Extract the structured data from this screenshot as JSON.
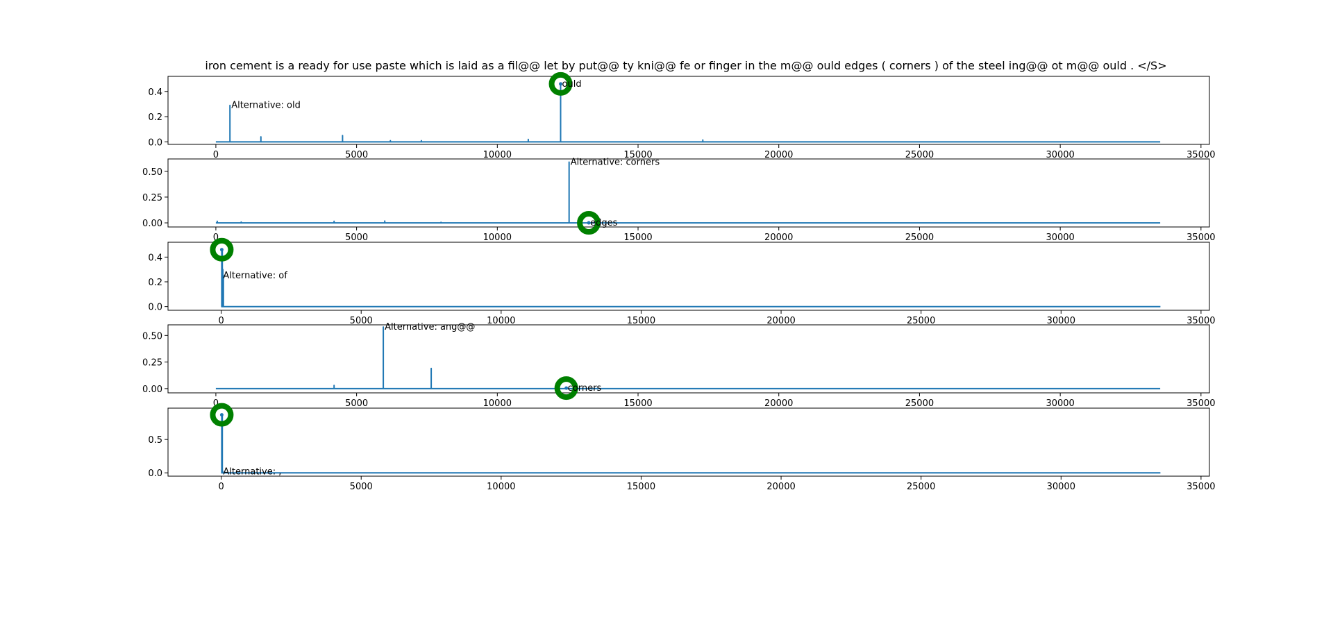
{
  "chart_data": {
    "title": "iron cement is a ready for use paste which is laid as a fil@@ let by put@@ ty kni@@ fe or finger in the m@@ ould edges ( corners ) of the steel ing@@ ot m@@ ould . </S>",
    "colors": {
      "line": "#1f77b4",
      "marker": "#008000"
    },
    "subplots": [
      {
        "type": "line",
        "xlim": [
          -1700,
          35300
        ],
        "ylim": [
          -0.02,
          0.52
        ],
        "xticks": [
          0,
          5000,
          10000,
          15000,
          20000,
          25000,
          30000,
          35000
        ],
        "yticks": [
          0.0,
          0.2,
          0.4
        ],
        "ytick_labels": [
          "0.0",
          "0.2",
          "0.4"
        ],
        "x_extent": [
          0,
          33550
        ],
        "spikes": [
          [
            500,
            0.29
          ],
          [
            1600,
            0.04
          ],
          [
            4500,
            0.05
          ],
          [
            6200,
            0.01
          ],
          [
            7300,
            0.01
          ],
          [
            11100,
            0.02
          ],
          [
            12250,
            0.46
          ],
          [
            17300,
            0.015
          ]
        ],
        "marker": {
          "x": 12250,
          "y": 0.46
        },
        "annotations": [
          {
            "label": "Alternative: old",
            "x": 500,
            "y": 0.29
          },
          {
            "label": "ould",
            "x": 12250,
            "y": 0.46
          }
        ]
      },
      {
        "type": "line",
        "xlim": [
          -1700,
          35300
        ],
        "ylim": [
          -0.04,
          0.62
        ],
        "xticks": [
          0,
          5000,
          10000,
          15000,
          20000,
          25000,
          30000,
          35000
        ],
        "yticks": [
          0.0,
          0.25,
          0.5
        ],
        "ytick_labels": [
          "0.00",
          "0.25",
          "0.50"
        ],
        "x_extent": [
          0,
          33550
        ],
        "spikes": [
          [
            50,
            0.015
          ],
          [
            900,
            0.008
          ],
          [
            4200,
            0.015
          ],
          [
            6000,
            0.018
          ],
          [
            8000,
            0.005
          ],
          [
            12550,
            0.59
          ]
        ],
        "marker": {
          "x": 13250,
          "y": 0.0
        },
        "annotations": [
          {
            "label": "Alternative: corners",
            "x": 12550,
            "y": 0.59
          },
          {
            "label": "edges",
            "x": 13250,
            "y": 0.0
          }
        ]
      },
      {
        "type": "line",
        "xlim": [
          -1900,
          35300
        ],
        "ylim": [
          -0.03,
          0.52
        ],
        "xticks": [
          0,
          5000,
          10000,
          15000,
          20000,
          25000,
          30000,
          35000
        ],
        "yticks": [
          0.0,
          0.2,
          0.4
        ],
        "ytick_labels": [
          "0.0",
          "0.2",
          "0.4"
        ],
        "x_extent": [
          0,
          33550
        ],
        "spikes": [
          [
            20,
            0.46
          ],
          [
            40,
            0.46
          ],
          [
            60,
            0.3
          ],
          [
            80,
            0.25
          ]
        ],
        "marker": {
          "x": 20,
          "y": 0.46
        },
        "annotations": [
          {
            "label": "Alternative: of",
            "x": 20,
            "y": 0.25
          }
        ]
      },
      {
        "type": "line",
        "xlim": [
          -1700,
          35300
        ],
        "ylim": [
          -0.04,
          0.6
        ],
        "xticks": [
          0,
          5000,
          10000,
          15000,
          20000,
          25000,
          30000,
          35000
        ],
        "yticks": [
          0.0,
          0.25,
          0.5
        ],
        "ytick_labels": [
          "0.00",
          "0.25",
          "0.50"
        ],
        "x_extent": [
          0,
          33550
        ],
        "spikes": [
          [
            4200,
            0.03
          ],
          [
            5950,
            0.58
          ],
          [
            7650,
            0.19
          ],
          [
            12450,
            0.005
          ]
        ],
        "marker": {
          "x": 12450,
          "y": 0.005
        },
        "annotations": [
          {
            "label": "Alternative: ang@@",
            "x": 5950,
            "y": 0.58
          },
          {
            "label": "corners",
            "x": 12450,
            "y": 0.005
          }
        ]
      },
      {
        "type": "line",
        "xlim": [
          -1900,
          35300
        ],
        "ylim": [
          -0.05,
          0.97
        ],
        "xticks": [
          0,
          5000,
          10000,
          15000,
          20000,
          25000,
          30000,
          35000
        ],
        "yticks": [
          0.0,
          0.5
        ],
        "ytick_labels": [
          "0.0",
          "0.5"
        ],
        "x_extent": [
          0,
          33550
        ],
        "spikes": [
          [
            20,
            0.87
          ],
          [
            40,
            0.87
          ],
          [
            60,
            0.02
          ]
        ],
        "marker": {
          "x": 20,
          "y": 0.87
        },
        "annotations": [
          {
            "label": "Alternative: ,",
            "x": 20,
            "y": 0.02
          }
        ]
      }
    ]
  }
}
